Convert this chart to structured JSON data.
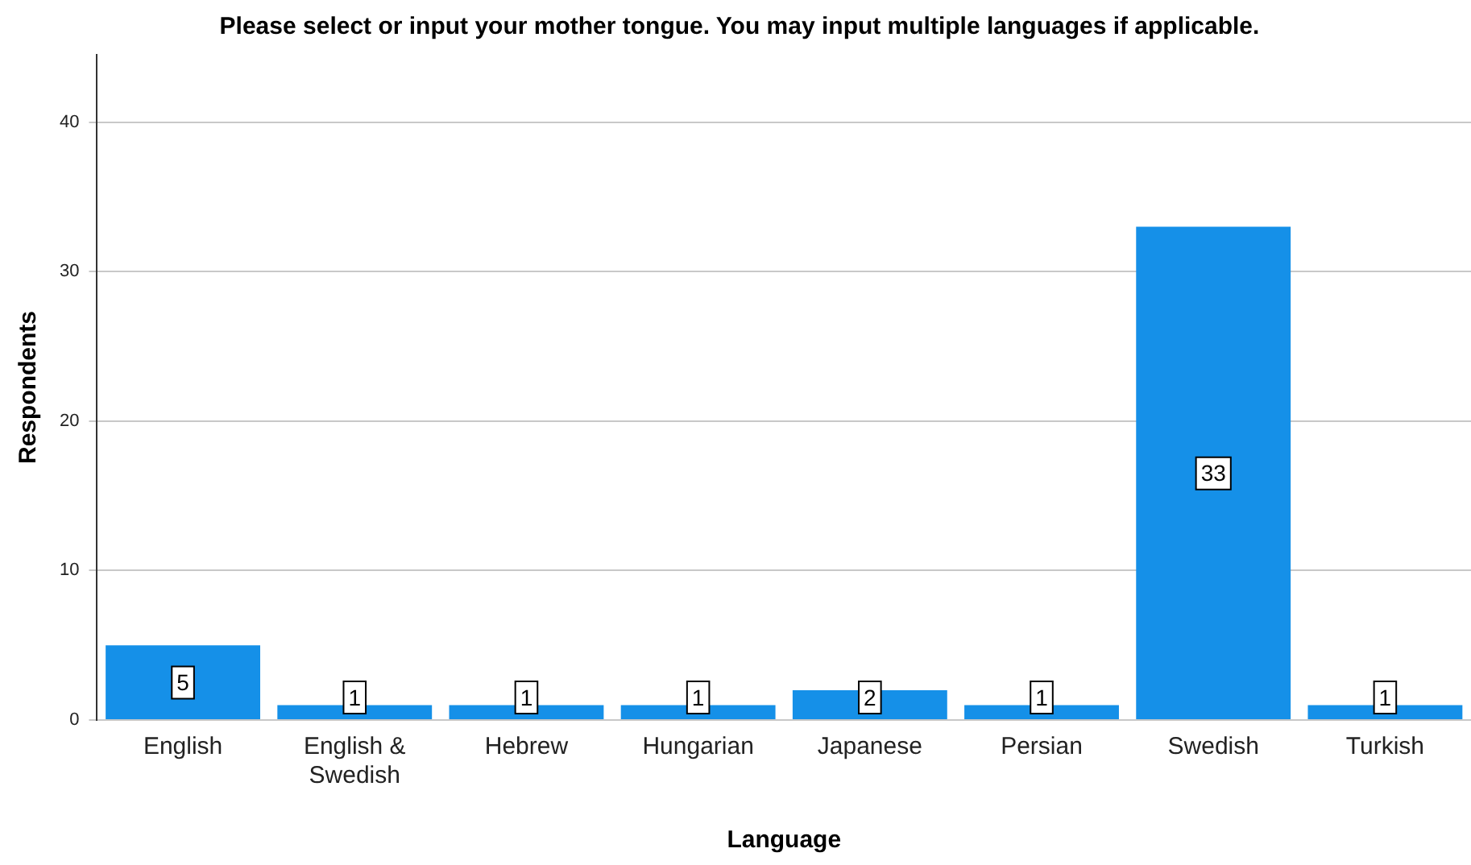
{
  "chart_data": {
    "type": "bar",
    "title": "Please select or input your mother tongue. You may input multiple languages if applicable.",
    "xlabel": "Language",
    "ylabel": "Respondents",
    "categories": [
      "English",
      "English & Swedish",
      "Hebrew",
      "Hungarian",
      "Japanese",
      "Persian",
      "Swedish",
      "Turkish"
    ],
    "values": [
      5,
      1,
      1,
      1,
      2,
      1,
      33,
      1
    ],
    "color": "#1590e8",
    "ylim": [
      0,
      44.5
    ],
    "yticks": [
      0,
      10,
      20,
      30,
      40
    ],
    "grid": "y",
    "data_labels": true
  }
}
